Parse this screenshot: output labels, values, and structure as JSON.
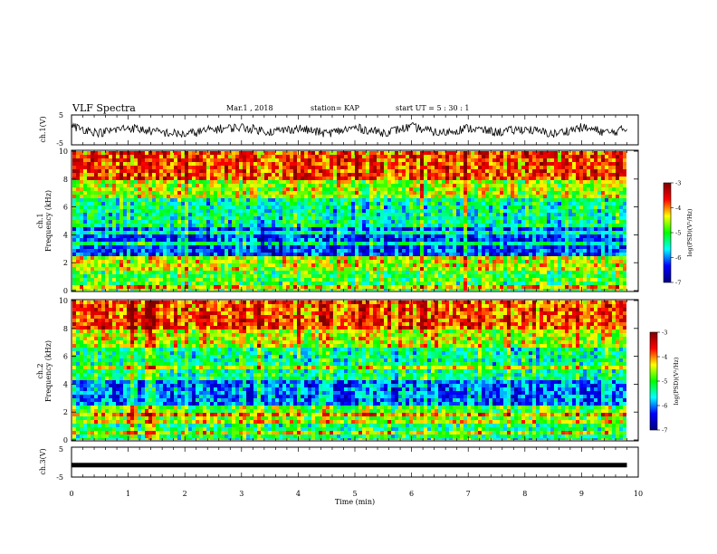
{
  "header": {
    "title": "VLF Spectra",
    "date": "Mar.1 , 2018",
    "station": "station= KAP",
    "start_ut": "start UT = 5 : 30 : 1"
  },
  "colorbar": {
    "label": "log(PSD)(V²/Hz)",
    "ticks": [
      "-3",
      "-4",
      "-5",
      "-6",
      "-7"
    ],
    "colors": [
      "#7f0000",
      "#ff0000",
      "#ffff00",
      "#00ff00",
      "#00ffff",
      "#0000ff",
      "#00007f"
    ]
  },
  "chart_data": [
    {
      "type": "line",
      "name": "ch1-voltage",
      "ylabel": "ch.1(V)",
      "ylim": [
        -5,
        5
      ],
      "yticks": [
        "5",
        "-5"
      ],
      "x": [
        0,
        0.5,
        1,
        1.5,
        2,
        2.5,
        3,
        3.5,
        4,
        4.5,
        5,
        5.5,
        6,
        6.5,
        7,
        7.5,
        8,
        8.5,
        9,
        9.5,
        9.8
      ],
      "y": [
        1.2,
        -1.0,
        0.8,
        -0.7,
        -1.5,
        0.2,
        0.9,
        -0.6,
        0.5,
        -1.2,
        0.7,
        -0.9,
        1.0,
        -1.1,
        0.6,
        -0.8,
        0.3,
        -1.4,
        0.8,
        -1.0,
        0.4
      ]
    },
    {
      "type": "heatmap",
      "name": "ch1-spectrogram",
      "ylabel": "ch.1 Frequency (kHz)",
      "xlim": [
        0,
        10
      ],
      "ylim": [
        0,
        10
      ],
      "yticks": [
        "0",
        "2",
        "4",
        "6",
        "8",
        "10"
      ],
      "bands_kHz": [
        {
          "from": 0,
          "to": 1.5,
          "log_psd": -5.0
        },
        {
          "from": 1.5,
          "to": 2.5,
          "log_psd": -4.5
        },
        {
          "from": 2.5,
          "to": 4.5,
          "log_psd": -6.2
        },
        {
          "from": 4.5,
          "to": 6.5,
          "log_psd": -5.4
        },
        {
          "from": 6.5,
          "to": 8.0,
          "log_psd": -4.6
        },
        {
          "from": 8.0,
          "to": 10.0,
          "log_psd": -3.8
        }
      ]
    },
    {
      "type": "heatmap",
      "name": "ch2-spectrogram",
      "ylabel": "ch.2 Frequency (kHz)",
      "xlim": [
        0,
        10
      ],
      "ylim": [
        0,
        10
      ],
      "yticks": [
        "0",
        "2",
        "4",
        "6",
        "8",
        "10"
      ],
      "bands_kHz": [
        {
          "from": 0,
          "to": 1.5,
          "log_psd": -5.2
        },
        {
          "from": 1.5,
          "to": 2.5,
          "log_psd": -4.8
        },
        {
          "from": 2.5,
          "to": 4.5,
          "log_psd": -6.0
        },
        {
          "from": 4.5,
          "to": 6.5,
          "log_psd": -5.3
        },
        {
          "from": 6.5,
          "to": 8.0,
          "log_psd": -4.5
        },
        {
          "from": 8.0,
          "to": 10.0,
          "log_psd": -3.8
        }
      ]
    },
    {
      "type": "line",
      "name": "ch3-voltage",
      "ylabel": "ch.3(V)",
      "ylim": [
        -5,
        5
      ],
      "yticks": [
        "5",
        "-5"
      ],
      "x": [
        0,
        9.8
      ],
      "y": [
        -1.0,
        -1.0
      ]
    }
  ],
  "xaxis": {
    "label": "Time (min)",
    "ticks": [
      "0",
      "1",
      "2",
      "3",
      "4",
      "5",
      "6",
      "7",
      "8",
      "9",
      "10"
    ]
  }
}
